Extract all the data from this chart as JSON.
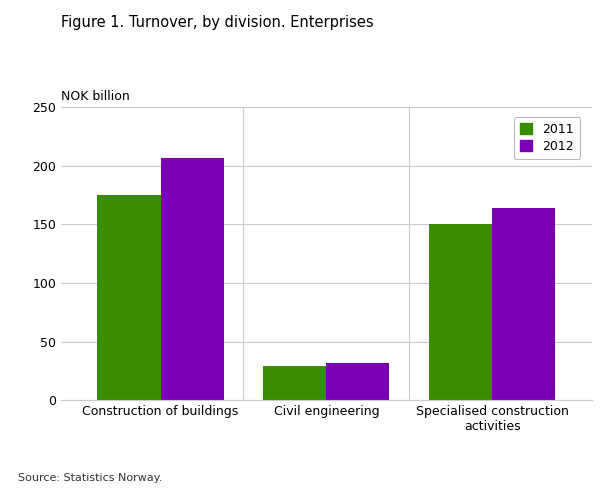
{
  "title": "Figure 1. Turnover, by division. Enterprises",
  "ylabel": "NOK billion",
  "source": "Source: Statistics Norway.",
  "categories": [
    "Construction of buildings",
    "Civil engineering",
    "Specialised construction\nactivities"
  ],
  "values_2011": [
    175,
    29,
    150
  ],
  "values_2012": [
    207,
    32,
    164
  ],
  "color_2011": "#3a8c00",
  "color_2012": "#7b00b4",
  "ylim": [
    0,
    250
  ],
  "yticks": [
    0,
    50,
    100,
    150,
    200,
    250
  ],
  "bar_width": 0.38,
  "legend_labels": [
    "2011",
    "2012"
  ],
  "background_color": "#ffffff",
  "grid_color": "#cccccc"
}
